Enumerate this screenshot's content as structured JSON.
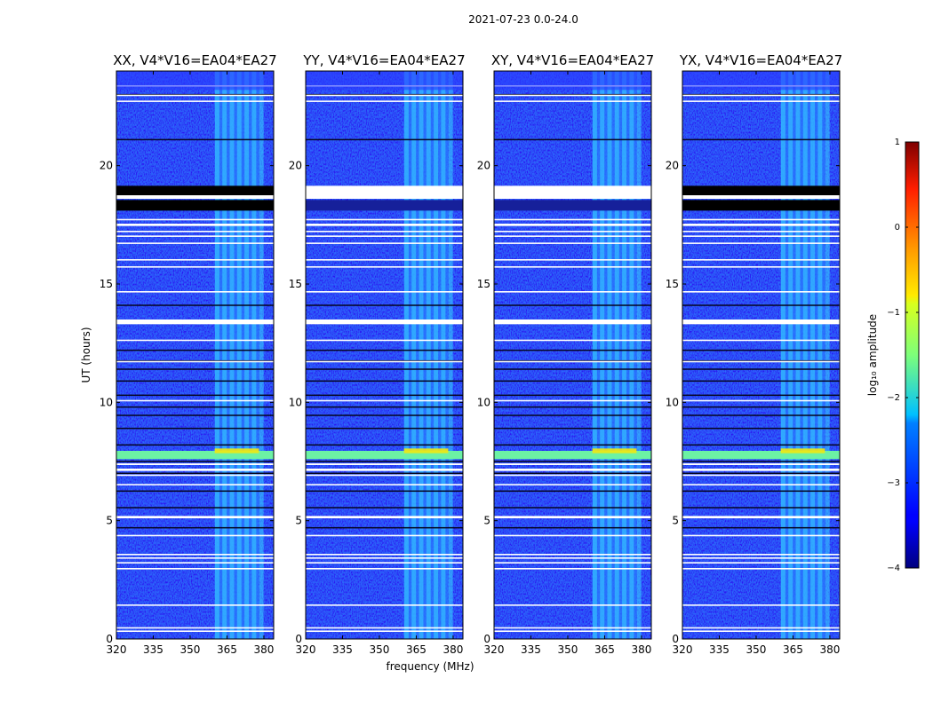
{
  "chart_data": {
    "type": "heatmap",
    "suptitle": "2021-07-23 0.0-24.0",
    "xlabel": "frequency (MHz)",
    "ylabel": "UT (hours)",
    "xlim": [
      320,
      384
    ],
    "ylim": [
      0,
      24
    ],
    "x_ticks": [
      320,
      335,
      350,
      365,
      380
    ],
    "y_ticks": [
      0,
      5,
      10,
      15,
      20
    ],
    "panels": [
      {
        "title": "XX, V4*V16=EA04*EA27"
      },
      {
        "title": "YY, V4*V16=EA04*EA27"
      },
      {
        "title": "XY, V4*V16=EA04*EA27"
      },
      {
        "title": "YX, V4*V16=EA04*EA27"
      }
    ],
    "colorbar": {
      "label": "log₁₀ amplitude",
      "range": [
        -4,
        1
      ],
      "ticks": [
        -4,
        -3,
        -2,
        -1,
        0,
        1
      ],
      "colormap": "jet"
    },
    "features": {
      "rfi_band_mhz": [
        360,
        378
      ],
      "rfi_strip_centers_mhz": [
        361,
        364,
        367,
        370,
        373,
        376,
        379
      ],
      "bright_interval_hours": [
        7.6,
        7.95
      ],
      "hot_strip_hours": [
        7.85,
        8.05
      ],
      "flagged_gaps_hours": [
        [
          0.3,
          0.36
        ],
        [
          0.45,
          0.5
        ],
        [
          1.4,
          1.46
        ],
        [
          2.95,
          3.0
        ],
        [
          3.2,
          3.25
        ],
        [
          3.4,
          3.45
        ],
        [
          3.55,
          3.6
        ],
        [
          4.35,
          4.4
        ],
        [
          5.1,
          5.2
        ],
        [
          6.5,
          6.55
        ],
        [
          6.9,
          6.95
        ],
        [
          7.1,
          7.2
        ],
        [
          7.35,
          7.42
        ],
        [
          10.05,
          10.1
        ],
        [
          11.7,
          11.75
        ],
        [
          12.6,
          12.65
        ],
        [
          13.3,
          13.5
        ],
        [
          14.65,
          14.7
        ],
        [
          15.7,
          15.75
        ],
        [
          16.0,
          16.05
        ],
        [
          16.7,
          16.75
        ],
        [
          17.0,
          17.05
        ],
        [
          17.2,
          17.25
        ],
        [
          17.45,
          17.55
        ],
        [
          17.7,
          17.75
        ],
        [
          18.6,
          18.75
        ],
        [
          22.7,
          22.75
        ],
        [
          22.95,
          23.0
        ],
        [
          23.35,
          23.4
        ]
      ],
      "flagged_blocks_hours": [
        [
          18.1,
          18.55
        ],
        [
          18.75,
          19.15
        ]
      ],
      "baseline_lines_hours": [
        4.7,
        5.55,
        6.25,
        7.0,
        7.5,
        8.2,
        8.9,
        9.45,
        9.8,
        10.3,
        10.9,
        11.4,
        11.75,
        12.2,
        14.1,
        21.1,
        23.0
      ]
    }
  }
}
